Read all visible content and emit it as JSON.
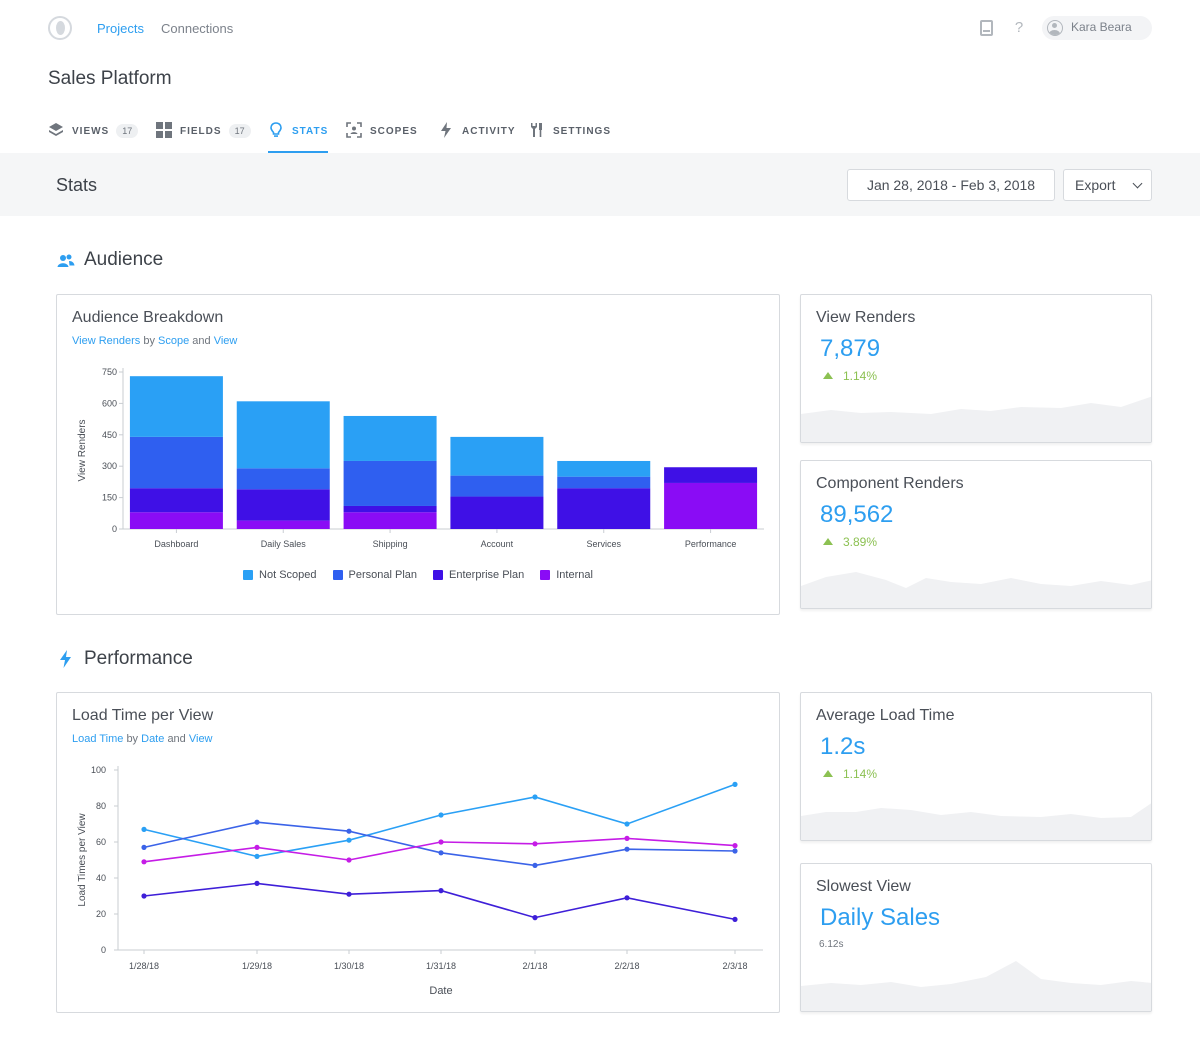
{
  "nav": {
    "links": [
      "Projects",
      "Connections"
    ],
    "user_name": "Kara Beara"
  },
  "project_title": "Sales Platform",
  "tabs": [
    {
      "label": "VIEWS",
      "count": "17",
      "icon": "layers-icon"
    },
    {
      "label": "FIELDS",
      "count": "17",
      "icon": "grid-icon"
    },
    {
      "label": "STATS",
      "count": "",
      "icon": "lightbulb-icon"
    },
    {
      "label": "SCOPES",
      "count": "",
      "icon": "scope-icon"
    },
    {
      "label": "ACTIVITY",
      "count": "",
      "icon": "bolt-icon"
    },
    {
      "label": "SETTINGS",
      "count": "",
      "icon": "tools-icon"
    }
  ],
  "statsbar": {
    "title": "Stats",
    "date_range": "Jan 28, 2018 - Feb 3, 2018",
    "export_label": "Export"
  },
  "sections": {
    "audience": "Audience",
    "performance": "Performance"
  },
  "colors": {
    "accent": "#2d9ef0",
    "positive": "#8cc152",
    "series": [
      "#2aa0f5",
      "#2f5ff0",
      "#3f10e6",
      "#8a0cf5"
    ],
    "lines": [
      "#2aa0f5",
      "#3b63e8",
      "#3e1fd8",
      "#c51ce6"
    ]
  },
  "audience_chart": {
    "title": "Audience Breakdown",
    "subtitle": {
      "metric": "View Renders",
      "by": "by",
      "dim1": "Scope",
      "and": "and",
      "dim2": "View"
    }
  },
  "performance_chart": {
    "title": "Load Time per View",
    "subtitle": {
      "metric": "Load Time",
      "by": "by",
      "dim1": "Date",
      "and": "and",
      "dim2": "View"
    }
  },
  "chart_data": [
    {
      "type": "bar",
      "stacked": true,
      "title": "Audience Breakdown",
      "ylabel": "View Renders",
      "xlabel": "",
      "ylim": [
        0,
        750
      ],
      "yticks": [
        0,
        150,
        300,
        450,
        600,
        750
      ],
      "categories": [
        "Dashboard",
        "Daily Sales",
        "Shipping",
        "Account",
        "Services",
        "Performance"
      ],
      "series": [
        {
          "name": "Internal",
          "values": [
            80,
            40,
            80,
            0,
            0,
            220
          ]
        },
        {
          "name": "Enterprise Plan",
          "values": [
            115,
            150,
            30,
            155,
            195,
            75
          ]
        },
        {
          "name": "Personal Plan",
          "values": [
            245,
            100,
            215,
            100,
            55,
            0
          ]
        },
        {
          "name": "Not Scoped",
          "values": [
            290,
            320,
            215,
            185,
            75,
            0
          ]
        }
      ],
      "legend_order": [
        "Not Scoped",
        "Personal Plan",
        "Enterprise Plan",
        "Internal"
      ],
      "legend": "bottom"
    },
    {
      "type": "line",
      "title": "Load Time per View",
      "ylabel": "Load Times per View",
      "xlabel": "Date",
      "ylim": [
        0,
        100
      ],
      "yticks": [
        0,
        20,
        40,
        60,
        80,
        100
      ],
      "x": [
        "1/28/18",
        "1/29/18",
        "1/30/18",
        "1/31/18",
        "2/1/18",
        "2/2/18",
        "2/3/18"
      ],
      "series": [
        {
          "values": [
            67,
            52,
            61,
            75,
            85,
            70,
            92
          ]
        },
        {
          "values": [
            57,
            71,
            66,
            54,
            47,
            56,
            55
          ]
        },
        {
          "values": [
            30,
            37,
            31,
            33,
            18,
            29,
            17
          ]
        },
        {
          "values": [
            49,
            57,
            50,
            60,
            59,
            62,
            58
          ]
        }
      ]
    }
  ],
  "metrics": [
    {
      "title": "View Renders",
      "value": "7,879",
      "change": "1.14%"
    },
    {
      "title": "Component Renders",
      "value": "89,562",
      "change": "3.89%"
    },
    {
      "title": "Average Load Time",
      "value": "1.2s",
      "change": "1.14%"
    },
    {
      "title": "Slowest View",
      "value": "Daily Sales",
      "sub": "6.12s"
    }
  ]
}
